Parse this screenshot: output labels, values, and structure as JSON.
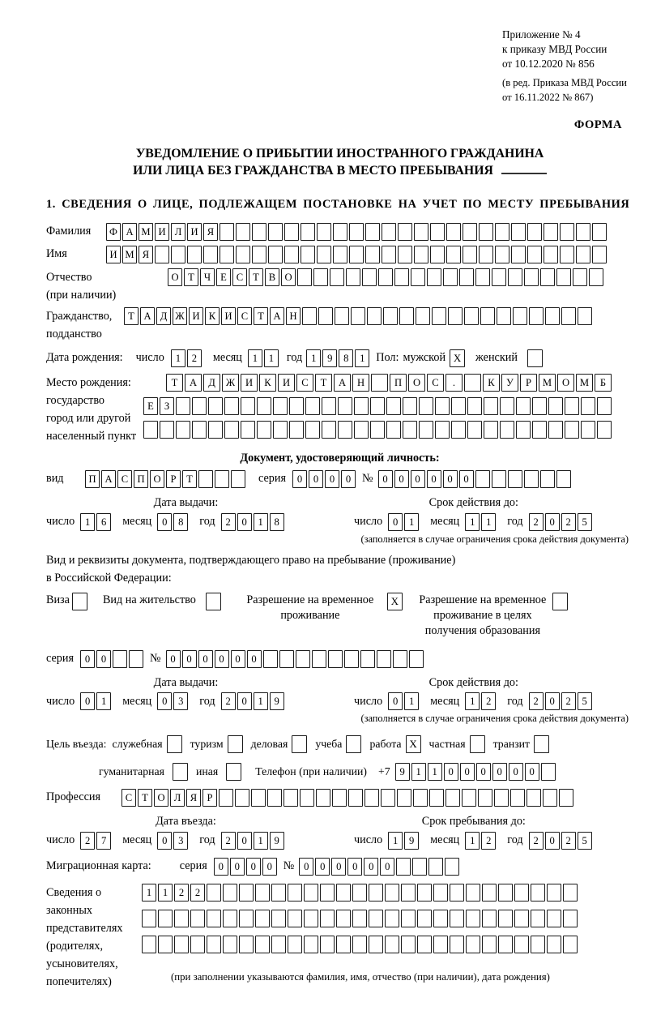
{
  "date_words": {
    "day": "число",
    "month": "месяц",
    "year": "год"
  },
  "header": {
    "appendix_lines": [
      "Приложение № 4",
      "к приказу МВД России",
      "от 10.12.2020 № 856"
    ],
    "edition_lines": [
      "(в ред. Приказа МВД России",
      "от 16.11.2022 № 867)"
    ],
    "form_label": "ФОРМА"
  },
  "title": {
    "line1": "УВЕДОМЛЕНИЕ О ПРИБЫТИИ ИНОСТРАННОГО ГРАЖДАНИНА",
    "line2": "ИЛИ ЛИЦА БЕЗ ГРАЖДАНСТВА В МЕСТО ПРЕБЫВАНИЯ"
  },
  "section1": {
    "heading": "1. СВЕДЕНИЯ О ЛИЦЕ, ПОДЛЕЖАЩЕМ ПОСТАНОВКЕ НА УЧЕТ ПО МЕСТУ ПРЕБЫВАНИЯ"
  },
  "fields": {
    "surname": {
      "label": "Фамилия",
      "cells": "ФАМИЛИЯ",
      "len": 31
    },
    "name": {
      "label": "Имя",
      "cells": "ИМЯ",
      "len": 31
    },
    "patronymic": {
      "label": "Отчество",
      "label2": "(при наличии)",
      "cells": "ОТЧЕСТВО",
      "len": 27
    },
    "citizenship": {
      "label": "Гражданство,",
      "label2": "подданство",
      "cells": "ТАДЖИКИСТАН",
      "len": 29
    },
    "birth_date": {
      "label": "Дата рождения:",
      "day": {
        "cells": "12",
        "len": 2
      },
      "month": {
        "cells": "11",
        "len": 2
      },
      "year": {
        "cells": "1981",
        "len": 4
      }
    },
    "gender": {
      "label": "Пол:",
      "male_label": "мужской",
      "male_checked": "X",
      "female_label": "женский",
      "female_checked": ""
    },
    "birth_place": {
      "label_lines": [
        "Место рождения:",
        "государство",
        "город или другой",
        "населенный пункт"
      ],
      "row1": {
        "cells": "ТАДЖИКИСТАН ПОС. КУРМОМБ",
        "len": 24
      },
      "row2": {
        "cells": "ЕЗ",
        "len": 29
      },
      "row3": {
        "cells": "",
        "len": 29
      }
    }
  },
  "doc_identity": {
    "heading": "Документ, удостоверяющий личность:",
    "kind_label": "вид",
    "kind": {
      "cells": "ПАСПОРТ",
      "len": 10
    },
    "series_label": "серия",
    "series": {
      "cells": "0000",
      "len": 4
    },
    "number_label": "№",
    "number": {
      "cells": "000000",
      "len": 12
    },
    "issue": {
      "heading": "Дата выдачи:",
      "day": {
        "cells": "16",
        "len": 2
      },
      "month": {
        "cells": "08",
        "len": 2
      },
      "year": {
        "cells": "2018",
        "len": 4
      }
    },
    "valid": {
      "heading": "Срок действия до:",
      "day": {
        "cells": "01",
        "len": 2
      },
      "month": {
        "cells": "11",
        "len": 2
      },
      "year": {
        "cells": "2025",
        "len": 4
      }
    },
    "note": "(заполняется в случае ограничения срока действия документа)"
  },
  "residence_doc": {
    "intro1": "Вид и реквизиты документа, подтверждающего право на пребывание (проживание)",
    "intro2": "в Российской Федерации:",
    "options": [
      {
        "label": "Виза",
        "checked": ""
      },
      {
        "label": "Вид на жительство",
        "checked": ""
      },
      {
        "label": "Разрешение на временное проживание",
        "checked": "X"
      },
      {
        "label": "Разрешение на временное проживание в целях получения образования",
        "checked": ""
      }
    ],
    "series_label": "серия",
    "series": {
      "cells": "00",
      "len": 4
    },
    "number_label": "№",
    "number": {
      "cells": "000000",
      "len": 16
    },
    "issue": {
      "heading": "Дата выдачи:",
      "day": {
        "cells": "01",
        "len": 2
      },
      "month": {
        "cells": "03",
        "len": 2
      },
      "year": {
        "cells": "2019",
        "len": 4
      }
    },
    "valid": {
      "heading": "Срок действия до:",
      "day": {
        "cells": "01",
        "len": 2
      },
      "month": {
        "cells": "12",
        "len": 2
      },
      "year": {
        "cells": "2025",
        "len": 4
      }
    },
    "note": "(заполняется в случае ограничения срока действия документа)"
  },
  "entry": {
    "purpose_label": "Цель въезда:",
    "purposes": [
      {
        "label": "служебная",
        "checked": ""
      },
      {
        "label": "туризм",
        "checked": ""
      },
      {
        "label": "деловая",
        "checked": ""
      },
      {
        "label": "учеба",
        "checked": ""
      },
      {
        "label": "работа",
        "checked": "X"
      },
      {
        "label": "частная",
        "checked": ""
      },
      {
        "label": "транзит",
        "checked": ""
      },
      {
        "label": "гуманитарная",
        "checked": ""
      },
      {
        "label": "иная",
        "checked": ""
      }
    ],
    "phone_label": "Телефон (при наличии)",
    "phone_prefix": "+7",
    "phone": {
      "cells": "911000000",
      "len": 10
    }
  },
  "profession": {
    "label": "Профессия",
    "cells": "СТОЛЯР",
    "len": 28
  },
  "entry_date": {
    "heading": "Дата въезда:",
    "day": {
      "cells": "27",
      "len": 2
    },
    "month": {
      "cells": "03",
      "len": 2
    },
    "year": {
      "cells": "2019",
      "len": 4
    }
  },
  "stay_until": {
    "heading": "Срок пребывания до:",
    "day": {
      "cells": "19",
      "len": 2
    },
    "month": {
      "cells": "12",
      "len": 2
    },
    "year": {
      "cells": "2025",
      "len": 4
    }
  },
  "migration_card": {
    "label": "Миграционная карта:",
    "series_label": "серия",
    "series": {
      "cells": "0000",
      "len": 4
    },
    "number_label": "№",
    "number": {
      "cells": "000000",
      "len": 10
    }
  },
  "representatives": {
    "label_lines": [
      "Сведения о",
      "законных",
      "представителях",
      "(родителях,",
      "усыновителях,",
      "попечителях)"
    ],
    "row1": {
      "cells": "1122",
      "len": 27
    },
    "row2": {
      "cells": "",
      "len": 27
    },
    "row3": {
      "cells": "",
      "len": 27
    },
    "note": "(при заполнении указываются фамилия, имя, отчество (при наличии), дата рождения)"
  }
}
